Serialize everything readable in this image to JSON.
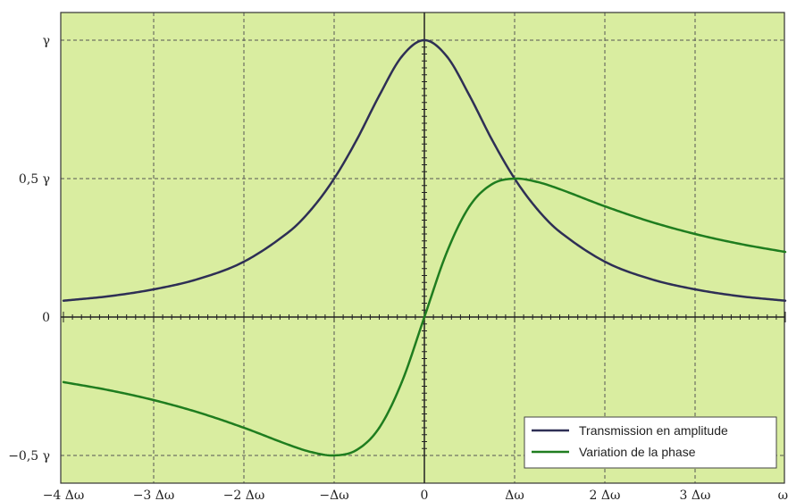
{
  "chart_data": {
    "type": "line",
    "title": "",
    "xlabel": "",
    "ylabel": "",
    "xlim": [
      -4,
      4
    ],
    "ylim": [
      -0.5,
      1
    ],
    "grid": true,
    "legend_placement": "bottom-right",
    "background_color": "#d9eda0",
    "x_tick_labels": [
      {
        "value": -4,
        "label": "−4 Δω"
      },
      {
        "value": -3,
        "label": "−3 Δω"
      },
      {
        "value": -2,
        "label": "−2 Δω"
      },
      {
        "value": -1,
        "label": "−Δω"
      },
      {
        "value": 0,
        "label": "0"
      },
      {
        "value": 1,
        "label": "Δω"
      },
      {
        "value": 2,
        "label": "2 Δω"
      },
      {
        "value": 3,
        "label": "3 Δω"
      },
      {
        "value": 4,
        "label": "ω"
      }
    ],
    "y_tick_labels": [
      {
        "value": 1,
        "label": "γ"
      },
      {
        "value": 0.5,
        "label": "0,5 γ"
      },
      {
        "value": 0,
        "label": "0"
      },
      {
        "value": -0.5,
        "label": "−0,5 γ"
      }
    ],
    "x": [
      -4,
      -3.5,
      -3,
      -2.5,
      -2,
      -1.5,
      -1.25,
      -1,
      -0.75,
      -0.5,
      -0.25,
      0,
      0.25,
      0.5,
      0.75,
      1,
      1.25,
      1.5,
      2,
      2.5,
      3,
      3.5,
      4
    ],
    "series": [
      {
        "name": "Transmission en amplitude",
        "color": "#2e2f55",
        "values": [
          0.059,
          0.075,
          0.1,
          0.138,
          0.2,
          0.308,
          0.39,
          0.5,
          0.64,
          0.8,
          0.941,
          1,
          0.941,
          0.8,
          0.64,
          0.5,
          0.39,
          0.308,
          0.2,
          0.138,
          0.1,
          0.075,
          0.059
        ]
      },
      {
        "name": "Variation de la phase",
        "color": "#1f7d1f",
        "values": [
          -0.235,
          -0.264,
          -0.3,
          -0.345,
          -0.4,
          -0.462,
          -0.488,
          -0.5,
          -0.48,
          -0.4,
          -0.235,
          0,
          0.235,
          0.4,
          0.48,
          0.5,
          0.488,
          0.462,
          0.4,
          0.345,
          0.3,
          0.264,
          0.235
        ]
      }
    ]
  }
}
